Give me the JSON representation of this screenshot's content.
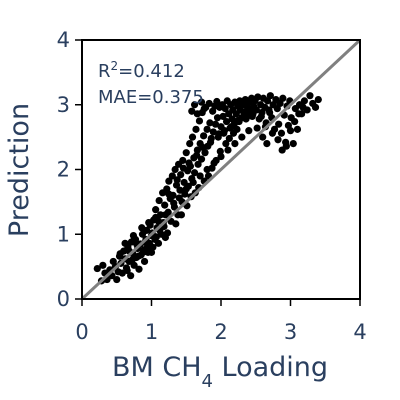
{
  "chart_data": {
    "type": "scatter",
    "xlabel": "BM CH",
    "xlabel_sub": "4",
    "xlabel_suffix": " Loading",
    "ylabel": "Prediction",
    "xlim": [
      0,
      4
    ],
    "ylim": [
      0,
      4
    ],
    "xticks": [
      "0",
      "1",
      "2",
      "3",
      "4"
    ],
    "yticks": [
      "0",
      "1",
      "2",
      "3",
      "4"
    ],
    "grid": false,
    "reference_line": "y = x",
    "colors": {
      "points": "#000000",
      "reference_line": "#808080",
      "text": "#2a3f5f",
      "frame": "#000000"
    },
    "annotations": {
      "r2_prefix": "R",
      "r2_sup": "2",
      "r2_value": "=0.412",
      "mae": "MAE=0.375"
    },
    "series": [
      {
        "points": [
          [
            0.22,
            0.47
          ],
          [
            0.28,
            0.28
          ],
          [
            0.3,
            0.52
          ],
          [
            0.33,
            0.4
          ],
          [
            0.36,
            0.3
          ],
          [
            0.4,
            0.45
          ],
          [
            0.43,
            0.36
          ],
          [
            0.45,
            0.58
          ],
          [
            0.48,
            0.5
          ],
          [
            0.5,
            0.3
          ],
          [
            0.52,
            0.42
          ],
          [
            0.54,
            0.66
          ],
          [
            0.56,
            0.55
          ],
          [
            0.58,
            0.4
          ],
          [
            0.6,
            0.74
          ],
          [
            0.62,
            0.62
          ],
          [
            0.64,
            0.48
          ],
          [
            0.66,
            0.8
          ],
          [
            0.68,
            0.58
          ],
          [
            0.7,
            0.36
          ],
          [
            0.71,
            0.88
          ],
          [
            0.73,
            0.7
          ],
          [
            0.75,
            0.52
          ],
          [
            0.77,
            0.92
          ],
          [
            0.78,
            0.64
          ],
          [
            0.8,
            0.78
          ],
          [
            0.82,
            0.46
          ],
          [
            0.84,
            0.85
          ],
          [
            0.85,
            0.68
          ],
          [
            0.87,
            1.0
          ],
          [
            0.89,
            0.76
          ],
          [
            0.9,
            0.58
          ],
          [
            0.92,
            0.92
          ],
          [
            0.93,
            1.06
          ],
          [
            0.95,
            0.72
          ],
          [
            0.97,
            0.86
          ],
          [
            0.98,
            1.14
          ],
          [
            1.0,
            0.98
          ],
          [
            1.02,
            0.8
          ],
          [
            1.03,
            1.22
          ],
          [
            1.05,
            0.92
          ],
          [
            1.06,
            1.38
          ],
          [
            1.08,
            1.1
          ],
          [
            1.1,
            0.86
          ],
          [
            1.11,
            1.52
          ],
          [
            1.13,
            1.3
          ],
          [
            1.14,
            1.0
          ],
          [
            1.16,
            1.64
          ],
          [
            1.17,
            1.18
          ],
          [
            1.19,
            1.45
          ],
          [
            1.2,
            0.95
          ],
          [
            1.22,
            1.7
          ],
          [
            1.24,
            1.34
          ],
          [
            1.25,
            1.82
          ],
          [
            1.27,
            1.55
          ],
          [
            1.28,
            1.2
          ],
          [
            1.3,
            1.9
          ],
          [
            1.31,
            1.6
          ],
          [
            1.33,
            1.42
          ],
          [
            1.34,
            2.0
          ],
          [
            1.36,
            1.76
          ],
          [
            1.38,
            1.3
          ],
          [
            1.39,
            2.08
          ],
          [
            1.41,
            1.68
          ],
          [
            1.42,
            1.92
          ],
          [
            1.44,
            1.5
          ],
          [
            1.45,
            2.14
          ],
          [
            1.47,
            1.8
          ],
          [
            1.48,
            1.62
          ],
          [
            1.5,
            2.26
          ],
          [
            1.52,
            1.98
          ],
          [
            1.53,
            1.74
          ],
          [
            1.55,
            2.4
          ],
          [
            1.56,
            2.05
          ],
          [
            1.58,
            1.86
          ],
          [
            1.59,
            2.5
          ],
          [
            1.61,
            2.18
          ],
          [
            1.62,
            1.95
          ],
          [
            1.64,
            2.62
          ],
          [
            1.66,
            2.3
          ],
          [
            1.67,
            2.08
          ],
          [
            1.69,
            2.75
          ],
          [
            1.7,
            2.4
          ],
          [
            1.72,
            2.16
          ],
          [
            1.73,
            2.88
          ],
          [
            1.75,
            2.52
          ],
          [
            1.77,
            2.26
          ],
          [
            1.78,
            2.96
          ],
          [
            1.8,
            2.62
          ],
          [
            1.81,
            2.36
          ],
          [
            1.83,
            3.02
          ],
          [
            1.84,
            2.72
          ],
          [
            1.86,
            2.48
          ],
          [
            1.88,
            2.9
          ],
          [
            1.89,
            2.58
          ],
          [
            1.91,
            2.98
          ],
          [
            1.92,
            2.7
          ],
          [
            1.94,
            3.05
          ],
          [
            1.95,
            2.8
          ],
          [
            1.97,
            2.55
          ],
          [
            1.98,
            2.96
          ],
          [
            2.0,
            2.66
          ],
          [
            2.02,
            3.0
          ],
          [
            2.03,
            2.82
          ],
          [
            2.05,
            2.6
          ],
          [
            2.06,
            2.94
          ],
          [
            2.08,
            2.74
          ],
          [
            2.09,
            3.06
          ],
          [
            2.11,
            2.86
          ],
          [
            2.13,
            2.64
          ],
          [
            2.14,
            3.0
          ],
          [
            2.16,
            2.78
          ],
          [
            2.17,
            2.92
          ],
          [
            2.19,
            2.7
          ],
          [
            2.2,
            3.04
          ],
          [
            2.22,
            2.86
          ],
          [
            2.24,
            2.98
          ],
          [
            2.25,
            2.76
          ],
          [
            2.27,
            3.06
          ],
          [
            2.28,
            2.92
          ],
          [
            2.3,
            2.8
          ],
          [
            2.32,
            3.0
          ],
          [
            2.33,
            2.88
          ],
          [
            2.35,
            3.08
          ],
          [
            2.37,
            2.84
          ],
          [
            2.38,
            2.96
          ],
          [
            2.4,
            3.04
          ],
          [
            2.42,
            2.9
          ],
          [
            2.44,
            3.1
          ],
          [
            2.45,
            2.82
          ],
          [
            2.47,
            2.98
          ],
          [
            2.49,
            3.06
          ],
          [
            2.51,
            2.92
          ],
          [
            2.53,
            3.12
          ],
          [
            2.55,
            2.78
          ],
          [
            2.57,
            3.0
          ],
          [
            2.59,
            2.88
          ],
          [
            2.61,
            3.1
          ],
          [
            2.63,
            2.96
          ],
          [
            2.65,
            2.72
          ],
          [
            2.67,
            3.06
          ],
          [
            2.69,
            2.92
          ],
          [
            2.71,
            3.14
          ],
          [
            2.73,
            2.8
          ],
          [
            2.75,
            3.0
          ],
          [
            2.77,
            2.62
          ],
          [
            2.79,
            3.08
          ],
          [
            2.81,
            2.94
          ],
          [
            2.83,
            2.7
          ],
          [
            2.85,
            3.02
          ],
          [
            2.87,
            2.56
          ],
          [
            2.89,
            3.1
          ],
          [
            2.91,
            2.84
          ],
          [
            2.93,
            2.42
          ],
          [
            2.95,
            2.98
          ],
          [
            2.97,
            2.68
          ],
          [
            2.99,
            3.06
          ],
          [
            3.01,
            2.8
          ],
          [
            3.04,
            2.4
          ],
          [
            3.07,
            2.94
          ],
          [
            3.1,
            2.62
          ],
          [
            3.13,
            3.0
          ],
          [
            3.16,
            2.86
          ],
          [
            3.2,
            3.06
          ],
          [
            3.24,
            2.92
          ],
          [
            3.28,
            3.14
          ],
          [
            3.32,
            3.02
          ],
          [
            3.36,
            2.96
          ],
          [
            3.4,
            3.08
          ],
          [
            1.1,
            1.2
          ],
          [
            1.2,
            1.3
          ],
          [
            1.25,
            1.62
          ],
          [
            1.32,
            1.48
          ],
          [
            1.37,
            1.84
          ],
          [
            1.4,
            1.56
          ],
          [
            1.46,
            2.02
          ],
          [
            1.5,
            1.7
          ],
          [
            1.54,
            2.1
          ],
          [
            1.6,
            1.8
          ],
          [
            1.65,
            2.22
          ],
          [
            1.7,
            1.9
          ],
          [
            1.74,
            2.34
          ],
          [
            1.8,
            2.0
          ],
          [
            1.85,
            2.42
          ],
          [
            1.9,
            2.1
          ],
          [
            1.96,
            2.5
          ],
          [
            2.0,
            2.2
          ],
          [
            2.04,
            2.56
          ],
          [
            2.1,
            2.3
          ],
          [
            2.15,
            2.66
          ],
          [
            2.2,
            2.4
          ],
          [
            2.26,
            2.74
          ],
          [
            2.3,
            2.5
          ],
          [
            2.36,
            2.78
          ],
          [
            2.4,
            2.6
          ],
          [
            2.46,
            2.86
          ],
          [
            2.52,
            2.64
          ],
          [
            2.58,
            2.82
          ],
          [
            2.64,
            2.66
          ],
          [
            2.7,
            2.88
          ],
          [
            0.55,
            0.7
          ],
          [
            0.62,
            0.86
          ],
          [
            0.68,
            0.74
          ],
          [
            0.74,
            0.98
          ],
          [
            0.79,
            0.84
          ],
          [
            0.86,
            1.1
          ],
          [
            0.91,
            0.88
          ],
          [
            0.96,
            1.18
          ],
          [
            1.01,
            1.02
          ],
          [
            1.06,
            1.26
          ],
          [
            0.65,
            0.44
          ],
          [
            0.72,
            0.6
          ],
          [
            0.81,
            0.66
          ],
          [
            0.88,
            0.72
          ],
          [
            0.94,
            0.8
          ],
          [
            1.0,
            0.72
          ],
          [
            1.07,
            0.96
          ],
          [
            1.12,
            1.06
          ],
          [
            1.18,
            1.12
          ],
          [
            1.23,
            1.02
          ],
          [
            1.35,
            1.16
          ],
          [
            1.43,
            1.3
          ],
          [
            1.51,
            1.44
          ],
          [
            1.57,
            1.58
          ],
          [
            1.63,
            1.64
          ],
          [
            1.68,
            1.72
          ],
          [
            1.76,
            1.82
          ],
          [
            1.82,
            1.9
          ],
          [
            1.87,
            2.02
          ],
          [
            1.93,
            2.14
          ],
          [
            1.99,
            2.28
          ],
          [
            2.07,
            2.4
          ],
          [
            2.12,
            2.48
          ],
          [
            2.18,
            2.56
          ],
          [
            2.23,
            2.62
          ],
          [
            1.58,
            2.9
          ],
          [
            1.62,
            3.0
          ],
          [
            1.66,
            2.86
          ],
          [
            1.72,
            3.04
          ],
          [
            1.76,
            2.94
          ],
          [
            2.6,
            2.5
          ],
          [
            2.66,
            2.4
          ],
          [
            2.74,
            2.56
          ],
          [
            2.82,
            2.46
          ],
          [
            2.88,
            2.3
          ],
          [
            2.94,
            2.36
          ],
          [
            3.0,
            2.6
          ],
          [
            3.06,
            2.74
          ],
          [
            3.12,
            2.86
          ],
          [
            3.18,
            2.96
          ]
        ]
      }
    ]
  }
}
